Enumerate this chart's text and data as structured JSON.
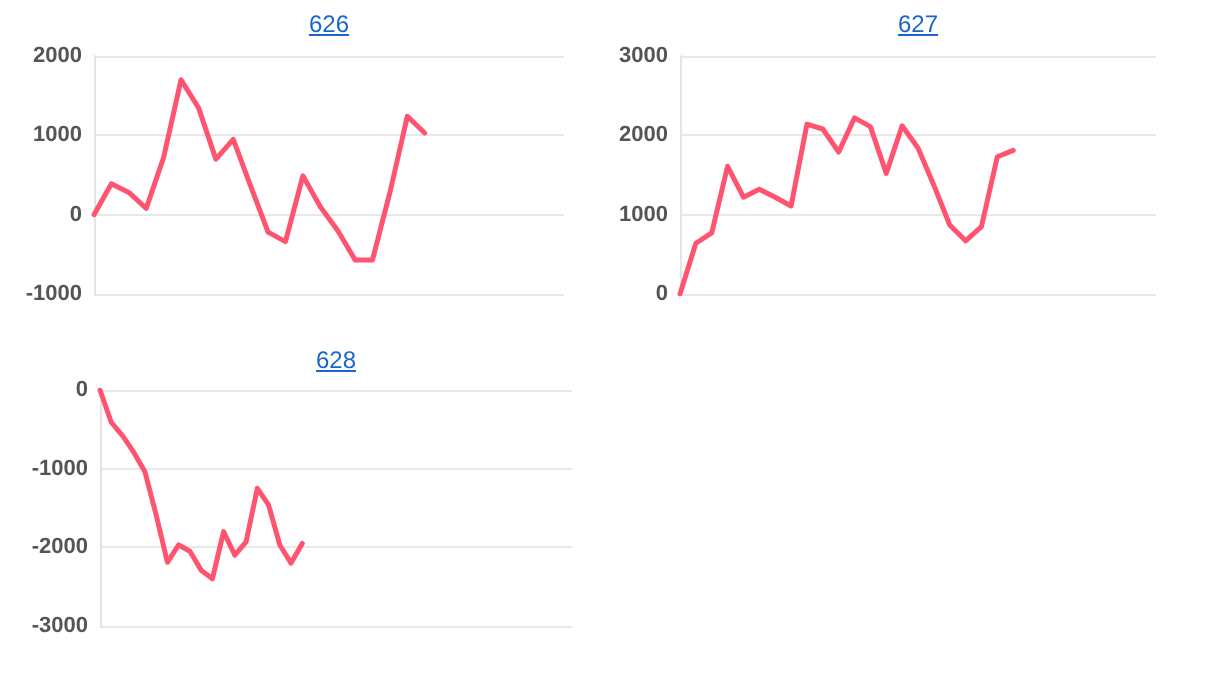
{
  "chart_data": [
    {
      "type": "line",
      "title": "626",
      "categories": [
        null,
        null,
        null,
        null,
        null,
        null,
        null,
        null,
        null,
        null,
        null,
        null,
        null,
        null,
        null,
        null,
        null,
        null,
        null,
        null,
        null,
        null,
        null,
        null,
        null,
        null,
        null,
        null
      ],
      "series": [
        {
          "color": "#ff5470",
          "values": [
            0,
            390,
            280,
            80,
            720,
            1700,
            1350,
            700,
            950,
            360,
            -220,
            -340,
            490,
            100,
            -200,
            -570,
            -570,
            280,
            1240,
            1030,
            null,
            null,
            null,
            null,
            null,
            null,
            null,
            null
          ]
        }
      ],
      "ylim": [
        -1000,
        2000
      ],
      "yticks": [
        -1000,
        0,
        1000,
        2000
      ],
      "grid": "y",
      "tick_labels": "y",
      "line_style": "solid"
    },
    {
      "type": "line",
      "title": "627",
      "categories": [
        null,
        null,
        null,
        null,
        null,
        null,
        null,
        null,
        null,
        null,
        null,
        null,
        null,
        null,
        null,
        null,
        null,
        null,
        null,
        null,
        null,
        null,
        null,
        null,
        null,
        null,
        null,
        null,
        null,
        null,
        null
      ],
      "series": [
        {
          "color": "#ff5470",
          "values": [
            0,
            640,
            770,
            1610,
            1220,
            1320,
            1220,
            1110,
            2140,
            2080,
            1790,
            2220,
            2110,
            1520,
            2120,
            1840,
            1370,
            870,
            670,
            850,
            1730,
            1810,
            null,
            null,
            null,
            null,
            null,
            null,
            null,
            null,
            null
          ]
        }
      ],
      "ylim": [
        0,
        3000
      ],
      "yticks": [
        0,
        1000,
        2000,
        3000
      ],
      "grid": "y",
      "tick_labels": "y",
      "line_style": "solid"
    },
    {
      "type": "line",
      "title": "628",
      "categories": [
        null,
        null,
        null,
        null,
        null,
        null,
        null,
        null,
        null,
        null,
        null,
        null,
        null,
        null,
        null,
        null,
        null,
        null,
        null,
        null,
        null,
        null,
        null,
        null,
        null,
        null,
        null,
        null,
        null,
        null,
        null,
        null,
        null,
        null,
        null,
        null,
        null,
        null,
        null,
        null,
        null,
        null,
        null
      ],
      "series": [
        {
          "color": "#ff5470",
          "values": [
            0,
            -410,
            -580,
            -790,
            -1040,
            -1590,
            -2190,
            -1970,
            -2050,
            -2290,
            -2400,
            -1800,
            -2100,
            -1930,
            -1250,
            -1460,
            -1970,
            -2200,
            -1950,
            null,
            null,
            null,
            null,
            null,
            null,
            null,
            null,
            null,
            null,
            null,
            null,
            null,
            null,
            null,
            null,
            null,
            null,
            null,
            null,
            null,
            null,
            null,
            null
          ]
        }
      ],
      "ylim": [
        -3000,
        0
      ],
      "yticks": [
        -3000,
        -2000,
        -1000,
        0
      ],
      "grid": "y",
      "tick_labels": "y",
      "line_style": "solid"
    }
  ]
}
